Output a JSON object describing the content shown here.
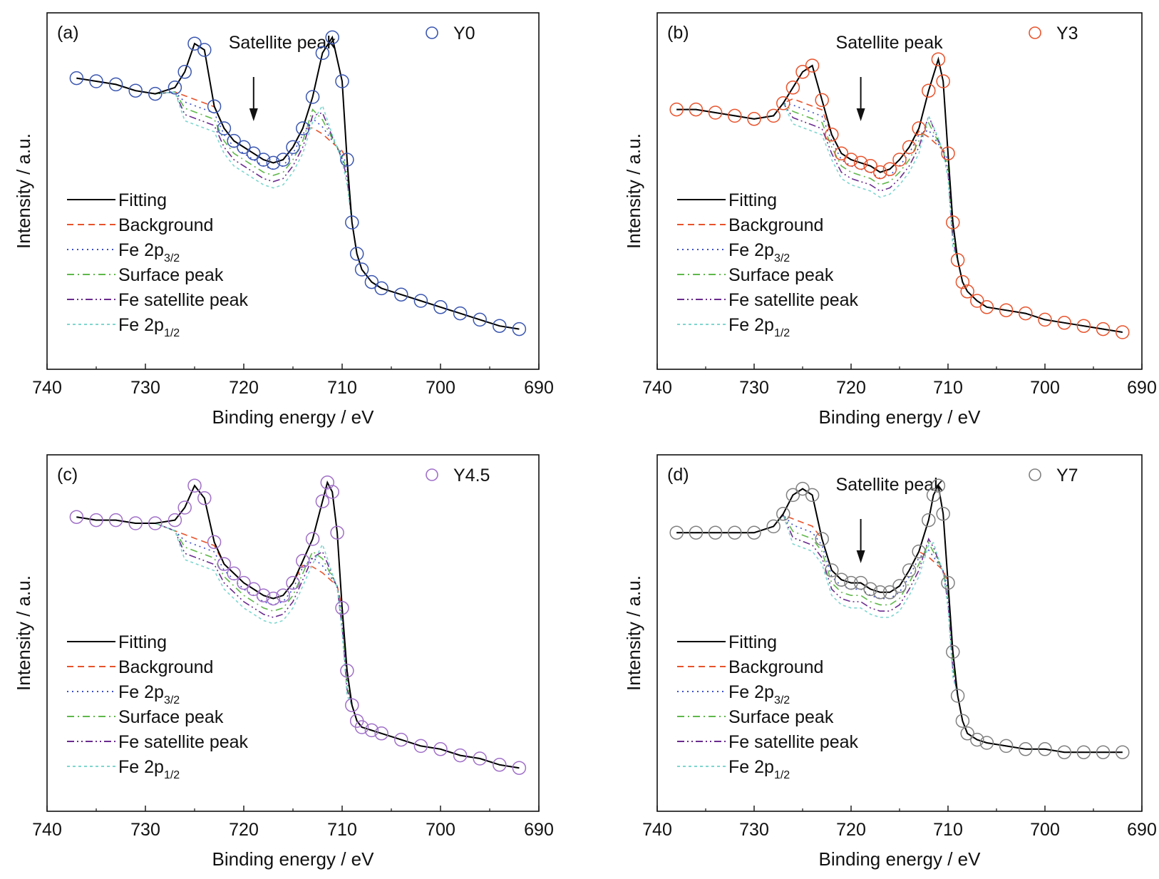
{
  "figure": {
    "xlabel": "Binding energy / eV",
    "ylabel": "Intensity / a.u."
  },
  "legend_entries": [
    {
      "key": "fitting",
      "label": "Fitting",
      "color": "#000000",
      "dash": "solid"
    },
    {
      "key": "background",
      "label": "Background",
      "color": "#e8532c",
      "dash": "dashed"
    },
    {
      "key": "fe2p32",
      "label": "Fe 2p",
      "sub": "3/2",
      "color": "#3d4fc9",
      "dash": "dotted"
    },
    {
      "key": "surface",
      "label": "Surface peak",
      "color": "#5fb84a",
      "dash": "dashdot"
    },
    {
      "key": "fesat",
      "label": "Fe satellite peak",
      "color": "#6a2b8f",
      "dash": "dashdotdot"
    },
    {
      "key": "fe2p12",
      "label": "Fe 2p",
      "sub": "1/2",
      "color": "#7fd6cf",
      "dash": "short-dashed"
    }
  ],
  "colors": {
    "Y0": "#3a56b0",
    "Y3": "#e8532c",
    "Y4.5": "#a070c8",
    "Y7": "#808080"
  },
  "chart_data": [
    {
      "panel": "(a)",
      "sample": "Y0",
      "type": "scatter",
      "xlim": [
        740,
        690
      ],
      "xticks": [
        740,
        730,
        720,
        710,
        700,
        690
      ],
      "annotation": "Satellite peak",
      "arrow_x": 719,
      "x": [
        737,
        735,
        733,
        731,
        729,
        727,
        726,
        725,
        724,
        723,
        722,
        721,
        720,
        719,
        718,
        717,
        716,
        715,
        714,
        713,
        712,
        711,
        710,
        709.5,
        709,
        708.5,
        708,
        707,
        706,
        704,
        702,
        700,
        698,
        696,
        694,
        692
      ],
      "y": [
        0.86,
        0.85,
        0.84,
        0.82,
        0.81,
        0.83,
        0.88,
        0.97,
        0.95,
        0.77,
        0.7,
        0.66,
        0.64,
        0.62,
        0.6,
        0.59,
        0.6,
        0.64,
        0.7,
        0.8,
        0.94,
        0.99,
        0.85,
        0.6,
        0.4,
        0.3,
        0.25,
        0.21,
        0.19,
        0.17,
        0.15,
        0.13,
        0.11,
        0.09,
        0.07,
        0.06
      ]
    },
    {
      "panel": "(b)",
      "sample": "Y3",
      "type": "scatter",
      "xlim": [
        740,
        690
      ],
      "xticks": [
        740,
        730,
        720,
        710,
        700,
        690
      ],
      "annotation": "Satellite peak",
      "arrow_x": 719,
      "x": [
        738,
        736,
        734,
        732,
        730,
        728,
        727,
        726,
        725,
        724,
        723,
        722,
        721,
        720,
        719,
        718,
        717,
        716,
        715,
        714,
        713,
        712,
        711,
        710.5,
        710,
        709.5,
        709,
        708.5,
        708,
        707,
        706,
        704,
        702,
        700,
        698,
        696,
        694,
        692
      ],
      "y": [
        0.76,
        0.76,
        0.75,
        0.74,
        0.73,
        0.74,
        0.78,
        0.83,
        0.88,
        0.9,
        0.79,
        0.68,
        0.62,
        0.6,
        0.59,
        0.58,
        0.56,
        0.57,
        0.6,
        0.64,
        0.7,
        0.82,
        0.92,
        0.85,
        0.62,
        0.4,
        0.28,
        0.21,
        0.18,
        0.15,
        0.13,
        0.12,
        0.11,
        0.09,
        0.08,
        0.07,
        0.06,
        0.05
      ]
    },
    {
      "panel": "(c)",
      "sample": "Y4.5",
      "type": "scatter",
      "xlim": [
        740,
        690
      ],
      "xticks": [
        740,
        730,
        720,
        710,
        700,
        690
      ],
      "annotation": "",
      "arrow_x": null,
      "x": [
        737,
        735,
        733,
        731,
        729,
        727,
        726,
        725,
        724,
        723,
        722,
        721,
        720,
        719,
        718,
        717,
        716,
        715,
        714,
        713,
        712,
        711.5,
        711,
        710.5,
        710,
        709.5,
        709,
        708.5,
        708,
        707,
        706,
        704,
        702,
        700,
        698,
        696,
        694,
        692
      ],
      "y": [
        0.87,
        0.86,
        0.86,
        0.85,
        0.85,
        0.86,
        0.9,
        0.97,
        0.93,
        0.79,
        0.72,
        0.69,
        0.66,
        0.64,
        0.62,
        0.61,
        0.62,
        0.66,
        0.73,
        0.8,
        0.92,
        0.98,
        0.95,
        0.82,
        0.58,
        0.38,
        0.27,
        0.22,
        0.2,
        0.19,
        0.18,
        0.16,
        0.14,
        0.13,
        0.11,
        0.1,
        0.08,
        0.07
      ]
    },
    {
      "panel": "(d)",
      "sample": "Y7",
      "type": "scatter",
      "xlim": [
        740,
        690
      ],
      "xticks": [
        740,
        730,
        720,
        710,
        700,
        690
      ],
      "annotation": "Satellite peak",
      "arrow_x": 719,
      "x": [
        738,
        736,
        734,
        732,
        730,
        728,
        727,
        726,
        725,
        724,
        723,
        722,
        721,
        720,
        719,
        718,
        717,
        716,
        715,
        714,
        713,
        712,
        711.5,
        711,
        710.5,
        710,
        709.5,
        709,
        708.5,
        708,
        707,
        706,
        704,
        702,
        700,
        698,
        696,
        694,
        692
      ],
      "y": [
        0.82,
        0.82,
        0.82,
        0.82,
        0.82,
        0.84,
        0.88,
        0.94,
        0.96,
        0.94,
        0.8,
        0.7,
        0.67,
        0.66,
        0.66,
        0.64,
        0.63,
        0.63,
        0.65,
        0.7,
        0.76,
        0.86,
        0.94,
        0.97,
        0.88,
        0.66,
        0.44,
        0.3,
        0.22,
        0.18,
        0.16,
        0.15,
        0.14,
        0.13,
        0.13,
        0.12,
        0.12,
        0.12,
        0.12
      ]
    }
  ]
}
